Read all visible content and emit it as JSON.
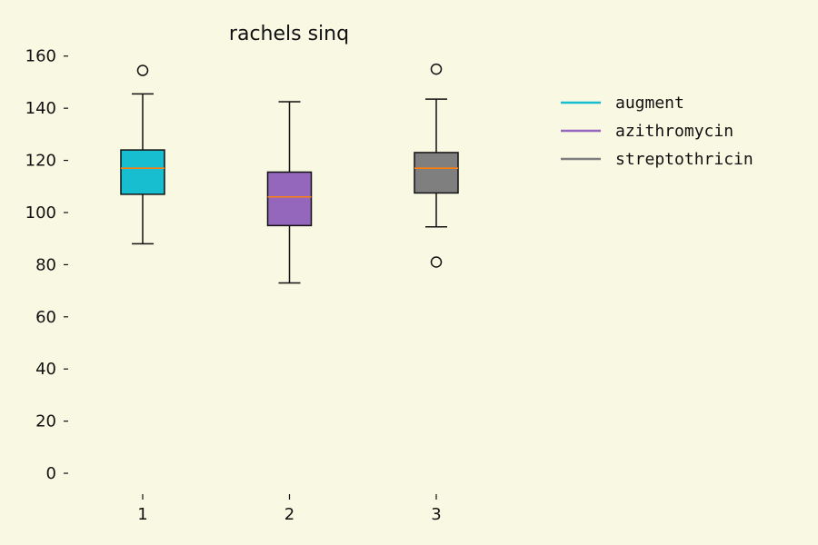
{
  "chart_data": {
    "type": "box",
    "title": "rachels sinq",
    "xlabel": "",
    "ylabel": "",
    "categories": [
      "1",
      "2",
      "3"
    ],
    "y_ticks": [
      0,
      20,
      40,
      60,
      80,
      100,
      120,
      140,
      160
    ],
    "ylim": [
      -8,
      162
    ],
    "grid": false,
    "legend_position": "right",
    "series": [
      {
        "name": "augment",
        "color": "#17becf",
        "q1": 107,
        "median": 117,
        "q3": 124,
        "whisker_low": 88,
        "whisker_high": 145.5,
        "outliers": [
          154.5
        ]
      },
      {
        "name": "azithromycin",
        "color": "#9467bd",
        "q1": 95,
        "median": 106,
        "q3": 115.5,
        "whisker_low": 73,
        "whisker_high": 142.5,
        "outliers": []
      },
      {
        "name": "streptothricin",
        "color": "#7f7f7f",
        "q1": 107.5,
        "median": 117,
        "q3": 123,
        "whisker_low": 94.5,
        "whisker_high": 143.5,
        "outliers": [
          81,
          155
        ]
      }
    ],
    "median_color": "#ff7f0e"
  }
}
